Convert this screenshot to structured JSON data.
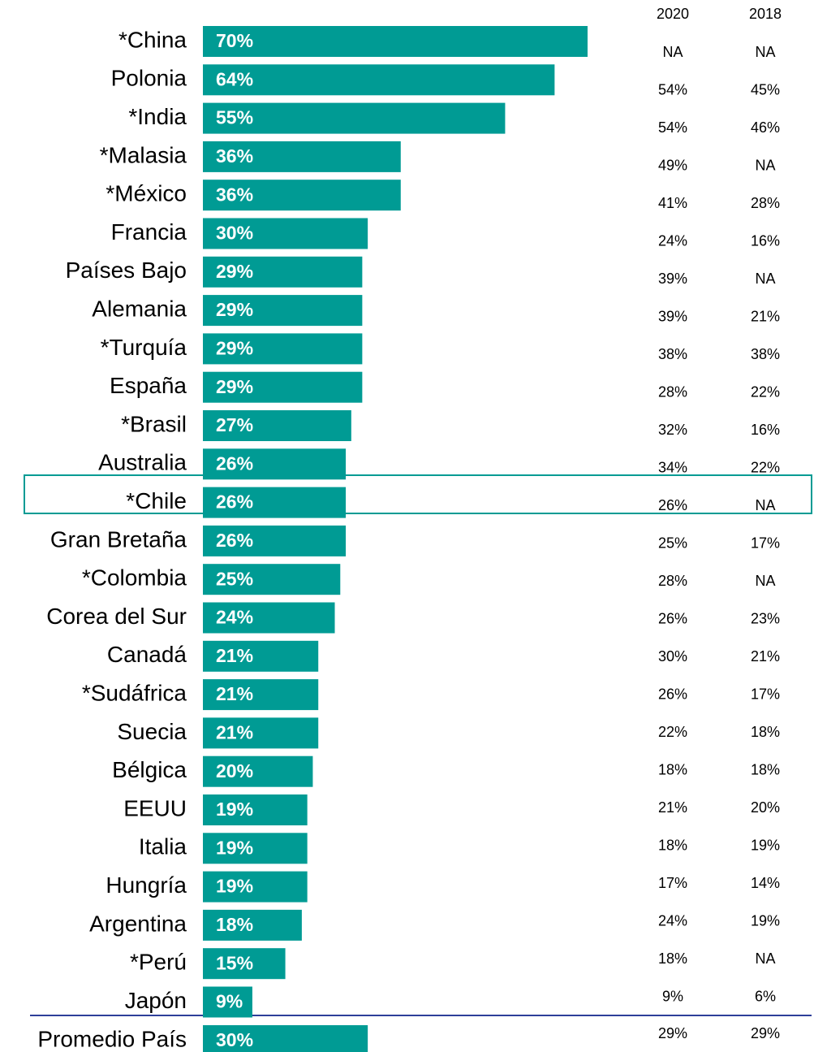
{
  "chart_data": {
    "type": "bar",
    "orientation": "horizontal",
    "color": "#009b94",
    "categories": [
      "*China",
      "Polonia",
      "*India",
      "*Malasia",
      "*México",
      "Francia",
      "Países Bajo",
      "Alemania",
      "*Turquía",
      "España",
      "*Brasil",
      "Australia",
      "*Chile",
      "Gran Bretaña",
      "*Colombia",
      "Corea del Sur",
      "Canadá",
      "*Sudáfrica",
      "Suecia",
      "Bélgica",
      "EEUU",
      "Italia",
      "Hungría",
      "Argentina",
      "*Perú",
      "Japón",
      "Promedio País"
    ],
    "values": [
      70,
      64,
      55,
      36,
      36,
      30,
      29,
      29,
      29,
      29,
      27,
      26,
      26,
      26,
      25,
      24,
      21,
      21,
      21,
      20,
      19,
      19,
      19,
      18,
      15,
      9,
      30
    ],
    "value_labels": [
      "70%",
      "64%",
      "55%",
      "36%",
      "36%",
      "30%",
      "29%",
      "29%",
      "29%",
      "29%",
      "27%",
      "26%",
      "26%",
      "26%",
      "25%",
      "24%",
      "21%",
      "21%",
      "21%",
      "20%",
      "19%",
      "19%",
      "19%",
      "18%",
      "15%",
      "9%",
      "30%"
    ],
    "table": {
      "columns": [
        "2020",
        "2018"
      ],
      "rows": [
        [
          "NA",
          "NA"
        ],
        [
          "54%",
          "45%"
        ],
        [
          "54%",
          "46%"
        ],
        [
          "49%",
          "NA"
        ],
        [
          "41%",
          "28%"
        ],
        [
          "24%",
          "16%"
        ],
        [
          "39%",
          "NA"
        ],
        [
          "39%",
          "21%"
        ],
        [
          "38%",
          "38%"
        ],
        [
          "28%",
          "22%"
        ],
        [
          "32%",
          "16%"
        ],
        [
          "34%",
          "22%"
        ],
        [
          "26%",
          "NA"
        ],
        [
          "25%",
          "17%"
        ],
        [
          "28%",
          "NA"
        ],
        [
          "26%",
          "23%"
        ],
        [
          "30%",
          "21%"
        ],
        [
          "26%",
          "17%"
        ],
        [
          "22%",
          "18%"
        ],
        [
          "18%",
          "18%"
        ],
        [
          "21%",
          "20%"
        ],
        [
          "18%",
          "19%"
        ],
        [
          "17%",
          "14%"
        ],
        [
          "24%",
          "19%"
        ],
        [
          "18%",
          "NA"
        ],
        [
          "9%",
          "6%"
        ],
        [
          "29%",
          "29%"
        ]
      ]
    }
  }
}
